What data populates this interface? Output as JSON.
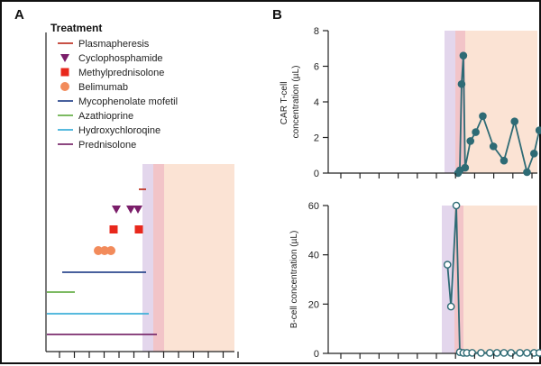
{
  "panels": {
    "a": "A",
    "b": "B"
  },
  "chart_data": [
    {
      "type": "timeline",
      "panel": "A",
      "legend_title": "Treatment",
      "treatments": [
        {
          "name": "Plasmapheresis",
          "color": "#c0392b",
          "marker": "line"
        },
        {
          "name": "Cyclophosphamide",
          "color": "#7b1e6a",
          "marker": "triangle-down"
        },
        {
          "name": "Methylprednisolone",
          "color": "#e8281c",
          "marker": "square"
        },
        {
          "name": "Belimumab",
          "color": "#f28b5b",
          "marker": "circle"
        },
        {
          "name": "Mycophenolate mofetil",
          "color": "#2e4a8f",
          "marker": "line"
        },
        {
          "name": "Azathioprine",
          "color": "#6ab04c",
          "marker": "line"
        },
        {
          "name": "Hydroxychloroqine",
          "color": "#3fb0d9",
          "marker": "line"
        },
        {
          "name": "Prednisolone",
          "color": "#7b2d6e",
          "marker": "line"
        }
      ],
      "x_tick_count": 13,
      "shading": [
        {
          "name": "purple-band",
          "color": "#e3d6ec"
        },
        {
          "name": "pink-band",
          "color": "#f2c4c8"
        },
        {
          "name": "peach-band",
          "color": "#fbe3d4"
        }
      ]
    },
    {
      "type": "line",
      "panel": "B-top",
      "ylabel": "CAR T-cell concentration (µL)",
      "ylim": [
        0,
        8
      ],
      "yticks": [
        "0",
        "2",
        "4",
        "6",
        "8"
      ],
      "color": "#2e6b75",
      "marker_fill": "#2e6b75",
      "points": [
        [
          0.0,
          0.0
        ],
        [
          0.1,
          0.15
        ],
        [
          0.2,
          5.0
        ],
        [
          0.3,
          6.6
        ],
        [
          0.4,
          0.3
        ],
        [
          0.7,
          1.8
        ],
        [
          1.0,
          2.3
        ],
        [
          1.4,
          3.2
        ],
        [
          2.0,
          1.5
        ],
        [
          2.6,
          0.7
        ],
        [
          3.2,
          2.9
        ],
        [
          3.9,
          0.05
        ],
        [
          4.3,
          1.1
        ],
        [
          4.6,
          2.4
        ]
      ]
    },
    {
      "type": "line",
      "panel": "B-bottom",
      "ylabel": "B-cell concentration (µL)",
      "ylim": [
        0,
        60
      ],
      "yticks": [
        "0",
        "20",
        "40",
        "60"
      ],
      "color": "#2e6b75",
      "marker_fill": "#ffffff",
      "points": [
        [
          -0.6,
          36
        ],
        [
          -0.4,
          19
        ],
        [
          -0.1,
          60
        ],
        [
          0.1,
          0.5
        ],
        [
          0.3,
          0.2
        ],
        [
          0.5,
          0.2
        ],
        [
          0.8,
          0.2
        ],
        [
          1.3,
          0.2
        ],
        [
          1.8,
          0.2
        ],
        [
          2.2,
          0.2
        ],
        [
          2.6,
          0.2
        ],
        [
          3.0,
          0.2
        ],
        [
          3.5,
          0.2
        ],
        [
          3.9,
          0.2
        ],
        [
          4.3,
          0.2
        ],
        [
          4.6,
          0.2
        ]
      ]
    }
  ]
}
